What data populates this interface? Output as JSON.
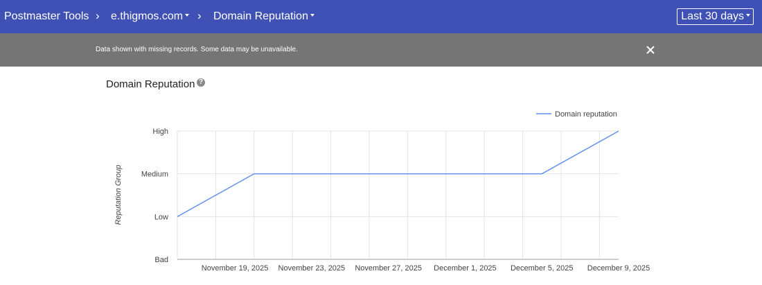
{
  "header": {
    "app_title": "Postmaster Tools",
    "separator": "›",
    "domain": "e.thigmos.com",
    "section": "Domain Reputation",
    "date_range": "Last 30 days"
  },
  "banner": {
    "message": "Data shown with missing records. Some data may be unavailable."
  },
  "panel": {
    "title": "Domain Reputation",
    "help_icon": "?"
  },
  "colors": {
    "header_bg": "#3f51b5",
    "banner_bg": "#757575",
    "series_line": "#5b8dee"
  },
  "chart_data": {
    "type": "line",
    "ylabel": "Reputation Group",
    "y_categories": [
      "Bad",
      "Low",
      "Medium",
      "High"
    ],
    "x_tick_labels": [
      "November 19, 2025",
      "November 23, 2025",
      "November 27, 2025",
      "December 1, 2025",
      "December 5, 2025",
      "December 9, 2025"
    ],
    "x_range": [
      "2025-11-16",
      "2025-12-09"
    ],
    "series": [
      {
        "name": "Domain reputation",
        "color": "#5b8dee",
        "points": [
          {
            "x": "2025-11-16",
            "y": "Low"
          },
          {
            "x": "2025-11-20",
            "y": "Medium"
          },
          {
            "x": "2025-12-05",
            "y": "Medium"
          },
          {
            "x": "2025-12-09",
            "y": "High"
          }
        ]
      }
    ],
    "legend": "top-right",
    "grid": true
  }
}
